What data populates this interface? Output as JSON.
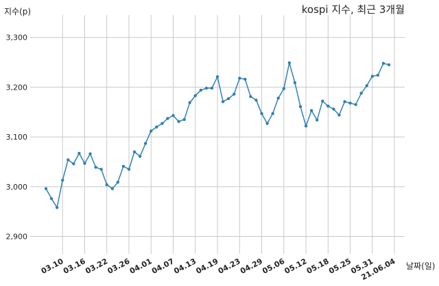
{
  "chart_data": {
    "type": "line",
    "title": "kospi 지수, 최근 3개월",
    "ylabel": "지수(p)",
    "xlabel": "날짜(일)",
    "ylim": [
      2865,
      3345
    ],
    "yticks": [
      2900,
      3000,
      3100,
      3200,
      3300
    ],
    "ytick_labels": [
      "2,900",
      "3,000",
      "3,100",
      "3,200",
      "3,300"
    ],
    "xtick_labels": [
      "03.10",
      "03.16",
      "03.22",
      "03.26",
      "04.01",
      "04.07",
      "04.13",
      "04.19",
      "04.23",
      "04.29",
      "05.06",
      "05.12",
      "05.18",
      "05.25",
      "05.31",
      "21.06.04"
    ],
    "xtick_index": [
      3,
      7,
      11,
      15,
      19,
      23,
      27,
      31,
      35,
      39,
      43,
      47,
      51,
      55,
      59,
      63
    ],
    "grid": true,
    "color": "#2f7fb2",
    "series": [
      {
        "values": [
          2996,
          2976,
          2958,
          3013,
          3054,
          3046,
          3067,
          3047,
          3066,
          3039,
          3035,
          3004,
          2996,
          3009,
          3041,
          3035,
          3070,
          3061,
          3087,
          3112,
          3120,
          3127,
          3137,
          3143,
          3131,
          3135,
          3169,
          3183,
          3194,
          3198,
          3198,
          3221,
          3171,
          3177,
          3186,
          3218,
          3216,
          3181,
          3174,
          3147,
          3127,
          3147,
          3178,
          3197,
          3249,
          3209,
          3161,
          3122,
          3153,
          3134,
          3172,
          3162,
          3156,
          3144,
          3171,
          3168,
          3165,
          3188,
          3203,
          3222,
          3224,
          3248,
          3245
        ]
      }
    ]
  }
}
